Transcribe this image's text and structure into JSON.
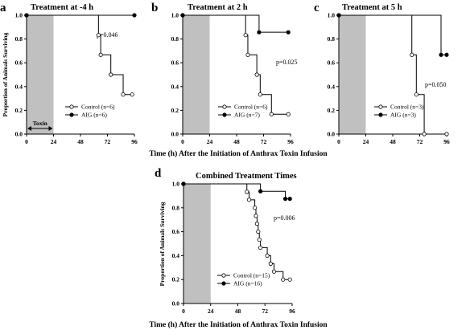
{
  "xlabel": "Time (h) After the Initiation of Anthrax Toxin Infusion",
  "colors": {
    "shade": "#c0c0c0",
    "line": "#000000",
    "control_marker": "#ffffff",
    "aig_marker": "#000000"
  },
  "chart_data": [
    {
      "type": "line",
      "step": true,
      "letter": "a",
      "title": "Treatment at -4 h",
      "ylabel": "Proportion of Animals Surviving",
      "xlim": [
        0,
        96
      ],
      "ylim": [
        0,
        1.0
      ],
      "xticks": [
        0,
        24,
        48,
        72,
        96
      ],
      "yticks": [
        "0.0",
        "0.2",
        "0.4",
        "0.6",
        "0.8",
        "1.0"
      ],
      "shaded_x": [
        0,
        24
      ],
      "annotation_text": "Toxin",
      "p_value": "p=0.046",
      "legend": "bottom-right",
      "series": [
        {
          "name": "Control (n=6)",
          "marker": "open-circle",
          "points": [
            [
              0,
              1.0
            ],
            [
              64,
              0.833
            ],
            [
              66,
              0.667
            ],
            [
              75,
              0.5
            ],
            [
              86,
              0.333
            ],
            [
              94,
              0.333
            ]
          ]
        },
        {
          "name": "AIG (n=6)",
          "marker": "filled-circle",
          "points": [
            [
              0,
              1.0
            ],
            [
              96,
              1.0
            ]
          ]
        }
      ]
    },
    {
      "type": "line",
      "step": true,
      "letter": "b",
      "title": "Treatment at 2 h",
      "ylabel": "",
      "xlim": [
        0,
        96
      ],
      "ylim": [
        0,
        1.0
      ],
      "xticks": [
        0,
        24,
        48,
        72,
        96
      ],
      "yticks": [
        "0.0",
        "0.2",
        "0.4",
        "0.6",
        "0.8",
        "1.0"
      ],
      "shaded_x": [
        0,
        24
      ],
      "p_value": "p=0.025",
      "legend": "bottom-right",
      "series": [
        {
          "name": "Control (n=6)",
          "marker": "open-circle",
          "points": [
            [
              0,
              1.0
            ],
            [
              56,
              0.833
            ],
            [
              58,
              0.667
            ],
            [
              66,
              0.5
            ],
            [
              69,
              0.333
            ],
            [
              79,
              0.167
            ],
            [
              94,
              0.167
            ]
          ]
        },
        {
          "name": "AIG (n=7)",
          "marker": "filled-circle",
          "points": [
            [
              0,
              1.0
            ],
            [
              68,
              0.857
            ],
            [
              94,
              0.857
            ]
          ]
        }
      ]
    },
    {
      "type": "line",
      "step": true,
      "letter": "c",
      "title": "Treatment at 5 h",
      "ylabel": "",
      "xlim": [
        0,
        96
      ],
      "ylim": [
        0,
        1.0
      ],
      "xticks": [
        0,
        24,
        48,
        72,
        96
      ],
      "yticks": [
        "0.0",
        "0.2",
        "0.4",
        "0.6",
        "0.8",
        "1.0"
      ],
      "shaded_x": [
        0,
        24
      ],
      "p_value": "p=0.050",
      "legend": "bottom-right",
      "series": [
        {
          "name": "Control (n=3)",
          "marker": "open-circle",
          "points": [
            [
              0,
              1.0
            ],
            [
              65,
              0.667
            ],
            [
              69,
              0.333
            ],
            [
              76,
              0
            ],
            [
              96,
              0
            ]
          ]
        },
        {
          "name": "AIG (n=3)",
          "marker": "filled-circle",
          "points": [
            [
              0,
              1.0
            ],
            [
              91,
              0.667
            ],
            [
              96,
              0.667
            ]
          ]
        }
      ]
    },
    {
      "type": "line",
      "step": true,
      "letter": "d",
      "title": "Combined Treatment Times",
      "ylabel": "Proportion of Animals Surviving",
      "xlim": [
        0,
        96
      ],
      "ylim": [
        0,
        1.0
      ],
      "xticks": [
        0,
        24,
        48,
        72,
        96
      ],
      "yticks": [
        "0.0",
        "0.2",
        "0.4",
        "0.6",
        "0.8",
        "1.0"
      ],
      "shaded_x": [
        0,
        24
      ],
      "p_value": "p=0.006",
      "legend": "bottom-right",
      "series": [
        {
          "name": "Control (n=15)",
          "marker": "open-circle",
          "points": [
            [
              0,
              1.0
            ],
            [
              56,
              0.933
            ],
            [
              58,
              0.867
            ],
            [
              63,
              0.8
            ],
            [
              64,
              0.733
            ],
            [
              65,
              0.667
            ],
            [
              66,
              0.6
            ],
            [
              67,
              0.533
            ],
            [
              68,
              0.467
            ],
            [
              74,
              0.4
            ],
            [
              77,
              0.333
            ],
            [
              80,
              0.267
            ],
            [
              88,
              0.2
            ],
            [
              94,
              0.2
            ]
          ]
        },
        {
          "name": "AIG (n=16)",
          "marker": "filled-circle",
          "points": [
            [
              0,
              1.0
            ],
            [
              68,
              0.938
            ],
            [
              90,
              0.875
            ],
            [
              94,
              0.875
            ]
          ]
        }
      ]
    }
  ]
}
